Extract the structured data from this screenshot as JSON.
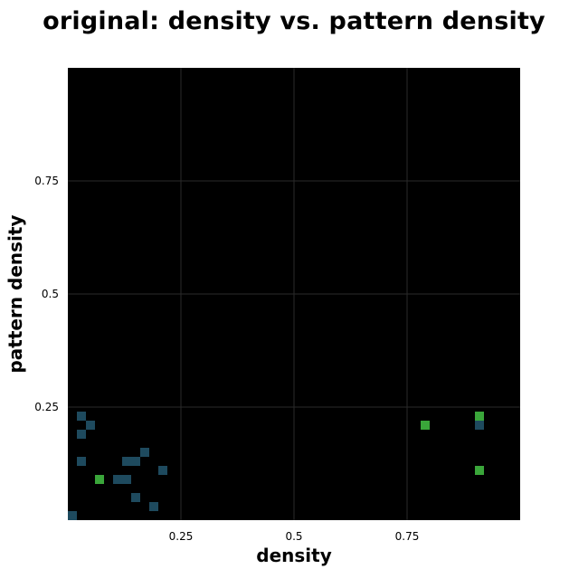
{
  "chart_data": {
    "type": "heatmap",
    "title": "original: density vs. pattern density",
    "xlabel": "density",
    "ylabel": "pattern density",
    "xlim": [
      0,
      1
    ],
    "ylim": [
      0,
      1
    ],
    "xticks": [
      0.25,
      0.5,
      0.75
    ],
    "xtick_labels": [
      "0.25",
      "0.5",
      "0.75"
    ],
    "yticks": [
      0.25,
      0.5,
      0.75
    ],
    "ytick_labels": [
      "0.25",
      "0.5",
      "0.75"
    ],
    "grid": true,
    "bin_size": 0.02,
    "background_color": "#000000",
    "grid_color": "#2a2a2a",
    "low_color": "#1e4a5e",
    "high_color": "#3aa63a",
    "cells": [
      {
        "x": 0.0,
        "y": 0.0,
        "level": "low"
      },
      {
        "x": 0.02,
        "y": 0.22,
        "level": "low"
      },
      {
        "x": 0.04,
        "y": 0.2,
        "level": "low"
      },
      {
        "x": 0.02,
        "y": 0.18,
        "level": "low"
      },
      {
        "x": 0.02,
        "y": 0.12,
        "level": "low"
      },
      {
        "x": 0.06,
        "y": 0.08,
        "level": "high"
      },
      {
        "x": 0.1,
        "y": 0.08,
        "level": "low"
      },
      {
        "x": 0.12,
        "y": 0.08,
        "level": "low"
      },
      {
        "x": 0.12,
        "y": 0.12,
        "level": "low"
      },
      {
        "x": 0.14,
        "y": 0.12,
        "level": "low"
      },
      {
        "x": 0.16,
        "y": 0.14,
        "level": "low"
      },
      {
        "x": 0.2,
        "y": 0.1,
        "level": "low"
      },
      {
        "x": 0.14,
        "y": 0.04,
        "level": "low"
      },
      {
        "x": 0.18,
        "y": 0.02,
        "level": "low"
      },
      {
        "x": 0.78,
        "y": 0.2,
        "level": "high"
      },
      {
        "x": 0.9,
        "y": 0.22,
        "level": "high"
      },
      {
        "x": 0.9,
        "y": 0.2,
        "level": "low"
      },
      {
        "x": 0.9,
        "y": 0.1,
        "level": "high"
      }
    ]
  }
}
